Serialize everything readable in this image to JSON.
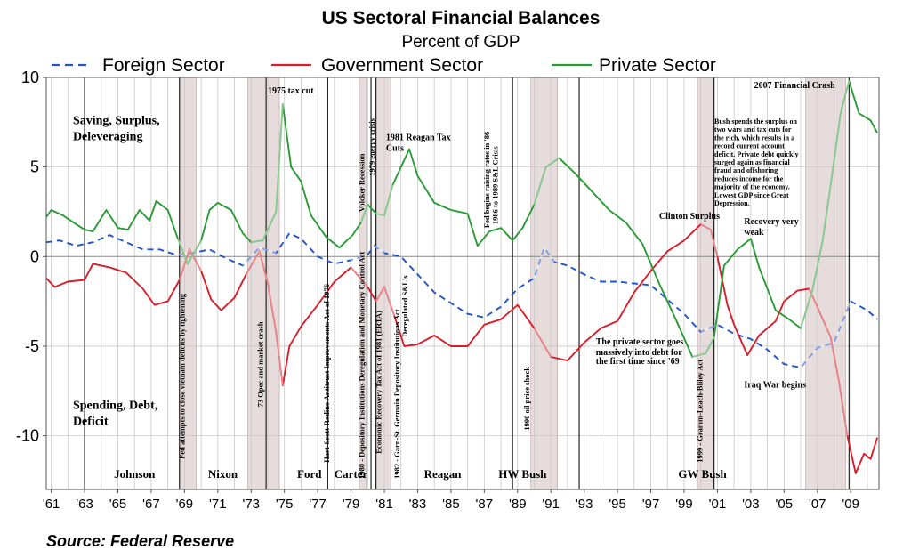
{
  "chart_data": {
    "type": "line",
    "title": "US Sectoral Financial Balances",
    "subtitle": "Percent of GDP",
    "ylim": [
      -13,
      10
    ],
    "xlim": [
      1960.7,
      2010.7
    ],
    "yticks": [
      10,
      5,
      0,
      -5,
      -10
    ],
    "ytick_labels": [
      "10",
      "5",
      "0",
      "-5",
      "-10"
    ],
    "xticks": [
      1961,
      1963,
      1965,
      1967,
      1969,
      1971,
      1973,
      1975,
      1977,
      1979,
      1981,
      1983,
      1985,
      1987,
      1989,
      1991,
      1993,
      1995,
      1997,
      1999,
      2001,
      2003,
      2005,
      2007,
      2009
    ],
    "xtick_labels": [
      "'61",
      "'63",
      "'65",
      "'67",
      "'69",
      "'71",
      "'73",
      "'75",
      "'77",
      "'79",
      "'81",
      "'83",
      "'85",
      "'87",
      "'89",
      "'91",
      "'93",
      "'95",
      "'97",
      "'99",
      "'01",
      "'03",
      "'05",
      "'07",
      "'09"
    ],
    "grid": true,
    "legend_position": "top",
    "series": [
      {
        "name": "Foreign Sector",
        "color": "#2255c8",
        "style": "dashed",
        "points": [
          [
            1960.7,
            0.8
          ],
          [
            1961.5,
            0.9
          ],
          [
            1962.5,
            0.6
          ],
          [
            1963.5,
            0.8
          ],
          [
            1964.5,
            1.2
          ],
          [
            1965.5,
            0.8
          ],
          [
            1966.5,
            0.4
          ],
          [
            1967.5,
            0.4
          ],
          [
            1968.5,
            0.1
          ],
          [
            1969.5,
            0.2
          ],
          [
            1970.5,
            0.4
          ],
          [
            1971.5,
            -0.1
          ],
          [
            1972.5,
            -0.5
          ],
          [
            1973.5,
            0.5
          ],
          [
            1974.5,
            0.2
          ],
          [
            1975.3,
            1.3
          ],
          [
            1976,
            1.0
          ],
          [
            1977,
            0.0
          ],
          [
            1978,
            -0.4
          ],
          [
            1979,
            -0.2
          ],
          [
            1980,
            0.1
          ],
          [
            1980.4,
            0.6
          ],
          [
            1981,
            0.2
          ],
          [
            1982,
            0.0
          ],
          [
            1983,
            -1.0
          ],
          [
            1984,
            -2.0
          ],
          [
            1985,
            -2.6
          ],
          [
            1986,
            -3.2
          ],
          [
            1987,
            -3.4
          ],
          [
            1988,
            -2.8
          ],
          [
            1989,
            -1.8
          ],
          [
            1990,
            -1.2
          ],
          [
            1990.6,
            0.5
          ],
          [
            1991.2,
            -0.3
          ],
          [
            1992,
            -0.5
          ],
          [
            1993,
            -1.0
          ],
          [
            1994,
            -1.4
          ],
          [
            1995,
            -1.4
          ],
          [
            1996,
            -1.5
          ],
          [
            1997,
            -1.6
          ],
          [
            1998,
            -2.4
          ],
          [
            1999,
            -3.2
          ],
          [
            2000,
            -4.2
          ],
          [
            2001,
            -3.8
          ],
          [
            2002,
            -4.3
          ],
          [
            2003,
            -4.6
          ],
          [
            2004,
            -5.2
          ],
          [
            2005,
            -6.0
          ],
          [
            2006,
            -6.2
          ],
          [
            2007,
            -5.1
          ],
          [
            2008,
            -4.8
          ],
          [
            2009,
            -2.5
          ],
          [
            2010,
            -3.0
          ],
          [
            2010.6,
            -3.5
          ]
        ]
      },
      {
        "name": "Government Sector",
        "color": "#d81e2a",
        "style": "solid",
        "points": [
          [
            1960.7,
            -1.2
          ],
          [
            1961.2,
            -1.7
          ],
          [
            1962,
            -1.4
          ],
          [
            1963,
            -1.3
          ],
          [
            1963.5,
            -0.4
          ],
          [
            1964.5,
            -0.6
          ],
          [
            1965.5,
            -0.9
          ],
          [
            1966.5,
            -1.8
          ],
          [
            1967.2,
            -2.7
          ],
          [
            1968,
            -2.5
          ],
          [
            1968.7,
            -1.3
          ],
          [
            1969.3,
            0.4
          ],
          [
            1970,
            -0.8
          ],
          [
            1970.6,
            -2.4
          ],
          [
            1971.2,
            -3.0
          ],
          [
            1972,
            -2.3
          ],
          [
            1972.7,
            -1.0
          ],
          [
            1973.5,
            0.3
          ],
          [
            1974,
            -1.5
          ],
          [
            1974.5,
            -4.2
          ],
          [
            1974.9,
            -7.2
          ],
          [
            1975.3,
            -5.0
          ],
          [
            1976,
            -3.9
          ],
          [
            1977,
            -2.7
          ],
          [
            1978,
            -1.4
          ],
          [
            1979,
            -0.6
          ],
          [
            1980,
            -1.7
          ],
          [
            1980.5,
            -2.5
          ],
          [
            1981,
            -1.7
          ],
          [
            1981.6,
            -3.3
          ],
          [
            1982.2,
            -5.0
          ],
          [
            1983,
            -4.9
          ],
          [
            1984,
            -4.4
          ],
          [
            1985,
            -5.0
          ],
          [
            1986,
            -5.0
          ],
          [
            1987,
            -3.8
          ],
          [
            1988,
            -3.5
          ],
          [
            1989,
            -2.7
          ],
          [
            1990,
            -4.0
          ],
          [
            1991,
            -5.6
          ],
          [
            1992,
            -5.8
          ],
          [
            1993,
            -4.8
          ],
          [
            1994,
            -4.0
          ],
          [
            1995,
            -3.6
          ],
          [
            1996,
            -2.0
          ],
          [
            1997,
            -0.8
          ],
          [
            1998,
            0.3
          ],
          [
            1999,
            0.9
          ],
          [
            2000,
            1.8
          ],
          [
            2000.6,
            1.5
          ],
          [
            2001,
            0.0
          ],
          [
            2001.6,
            -2.7
          ],
          [
            2002,
            -3.8
          ],
          [
            2002.8,
            -5.5
          ],
          [
            2003.5,
            -4.4
          ],
          [
            2004.5,
            -3.6
          ],
          [
            2005,
            -2.5
          ],
          [
            2005.8,
            -1.9
          ],
          [
            2006.5,
            -1.8
          ],
          [
            2007,
            -2.8
          ],
          [
            2007.8,
            -4.5
          ],
          [
            2008.3,
            -7.0
          ],
          [
            2008.8,
            -10.0
          ],
          [
            2009.3,
            -12.1
          ],
          [
            2009.8,
            -11.0
          ],
          [
            2010.2,
            -11.3
          ],
          [
            2010.6,
            -10.1
          ]
        ]
      },
      {
        "name": "Private Sector",
        "color": "#2a9b36",
        "style": "solid",
        "points": [
          [
            1960.7,
            2.2
          ],
          [
            1961,
            2.6
          ],
          [
            1961.7,
            2.3
          ],
          [
            1962.5,
            1.8
          ],
          [
            1963,
            1.5
          ],
          [
            1963.5,
            1.4
          ],
          [
            1964.3,
            2.6
          ],
          [
            1965,
            1.6
          ],
          [
            1965.6,
            1.5
          ],
          [
            1966.3,
            2.6
          ],
          [
            1966.9,
            2.0
          ],
          [
            1967.3,
            3.1
          ],
          [
            1968,
            2.6
          ],
          [
            1968.6,
            1.0
          ],
          [
            1969.2,
            -0.4
          ],
          [
            1970,
            0.9
          ],
          [
            1970.5,
            2.6
          ],
          [
            1971,
            3.0
          ],
          [
            1971.8,
            2.6
          ],
          [
            1972.5,
            1.3
          ],
          [
            1973,
            0.8
          ],
          [
            1973.7,
            0.9
          ],
          [
            1974.5,
            2.5
          ],
          [
            1974.9,
            8.5
          ],
          [
            1975.4,
            5.0
          ],
          [
            1976,
            4.2
          ],
          [
            1976.6,
            2.3
          ],
          [
            1977.5,
            1.1
          ],
          [
            1978.3,
            0.5
          ],
          [
            1979.1,
            1.2
          ],
          [
            1979.6,
            1.9
          ],
          [
            1980,
            2.9
          ],
          [
            1980.5,
            2.4
          ],
          [
            1981,
            2.3
          ],
          [
            1981.5,
            4.0
          ],
          [
            1982.5,
            6.0
          ],
          [
            1983,
            4.5
          ],
          [
            1984,
            3.0
          ],
          [
            1985,
            2.6
          ],
          [
            1986,
            2.4
          ],
          [
            1986.6,
            0.6
          ],
          [
            1987.3,
            1.4
          ],
          [
            1988,
            1.6
          ],
          [
            1988.7,
            0.9
          ],
          [
            1989.3,
            1.6
          ],
          [
            1990,
            2.9
          ],
          [
            1990.7,
            5.0
          ],
          [
            1991.5,
            5.5
          ],
          [
            1992.5,
            4.6
          ],
          [
            1993.5,
            3.6
          ],
          [
            1994.5,
            2.6
          ],
          [
            1995.5,
            1.9
          ],
          [
            1996.5,
            0.7
          ],
          [
            1997.5,
            -1.5
          ],
          [
            1998.5,
            -3.5
          ],
          [
            1999.5,
            -5.6
          ],
          [
            2000.3,
            -5.4
          ],
          [
            2000.8,
            -4.5
          ],
          [
            2001.4,
            -0.5
          ],
          [
            2002.2,
            0.4
          ],
          [
            2003,
            1.0
          ],
          [
            2003.5,
            -0.6
          ],
          [
            2004.5,
            -3.0
          ],
          [
            2005.3,
            -3.5
          ],
          [
            2006,
            -4.0
          ],
          [
            2006.7,
            -1.9
          ],
          [
            2007.3,
            0.8
          ],
          [
            2007.8,
            4.0
          ],
          [
            2008.4,
            8.0
          ],
          [
            2008.9,
            9.8
          ],
          [
            2009.5,
            8.0
          ],
          [
            2010.2,
            7.6
          ],
          [
            2010.6,
            6.9
          ]
        ]
      }
    ],
    "shaded_periods": [
      [
        1968.7,
        1969.7
      ],
      [
        1972.8,
        1974.7
      ],
      [
        1979.5,
        1979.9
      ],
      [
        1980.5,
        1981.4
      ],
      [
        1989.8,
        1991.4
      ],
      [
        1999.8,
        2000.8
      ],
      [
        2006.3,
        2008.7
      ]
    ],
    "vertical_markers": [
      1963.0,
      1968.7,
      1973.9,
      1977.6,
      1980.2,
      1980.5,
      1988.7,
      1992.7,
      2000.8,
      2008.9
    ],
    "annotations": [
      {
        "text": "Saving, Surplus,",
        "x": 1962.3,
        "y": 7.4
      },
      {
        "text": "Deleveraging",
        "x": 1962.3,
        "y": 6.5
      },
      {
        "text": "Spending, Debt,",
        "x": 1962.3,
        "y": -8.5
      },
      {
        "text": "Deficit",
        "x": 1962.3,
        "y": -9.4
      },
      {
        "text": "1975 tax cut",
        "x": 1974.0,
        "y": 9.1
      },
      {
        "text": "1981 Reagan Tax",
        "x": 1981.1,
        "y": 6.5
      },
      {
        "text": "Cuts",
        "x": 1981.1,
        "y": 5.9
      },
      {
        "text": "2007 Financial Crash",
        "x": 2003.2,
        "y": 9.4
      },
      {
        "text": "Clinton Surplus",
        "x": 1997.5,
        "y": 2.1
      },
      {
        "text": "Recovery very",
        "x": 2002.6,
        "y": 1.8
      },
      {
        "text": "weak",
        "x": 2002.6,
        "y": 1.2
      },
      {
        "text": "Iraq War begins",
        "x": 2002.6,
        "y": -7.3
      },
      {
        "text": "The private sector goes",
        "x": 1993.7,
        "y": -4.9
      },
      {
        "text": "massively into debt for",
        "x": 1993.7,
        "y": -5.5
      },
      {
        "text": "the first time since '69",
        "x": 1993.7,
        "y": -6.0
      }
    ],
    "bush_note": [
      "Bush spends the surplus on",
      "two wars and tax cuts for",
      "the rich, which results in a",
      "record current account",
      "deficit. Private debt quickly",
      "surged again as financial",
      "fraud and offshoring",
      "reduces income for the",
      "majority of the economy.",
      "Lowest GDP since Great",
      "Depression."
    ],
    "vertical_annotations": [
      {
        "text": "Fed attempts to close vietnam deficits by tightening",
        "x": 1969.0,
        "y": -11.3
      },
      {
        "text": "73 Opec and market crash",
        "x": 1973.7,
        "y": -8.4
      },
      {
        "text": "Hart-Scott-Rodino Antitrust Improvements Act of 1976",
        "x": 1977.7,
        "y": -11.5
      },
      {
        "text": "1980 - Depository Institutions Deregulation and Monetary Control Act",
        "x": 1979.8,
        "y": -12.4
      },
      {
        "text": "Volcker Recession",
        "x": 1979.8,
        "y": 2.5
      },
      {
        "text": "1979 energy crisis",
        "x": 1980.4,
        "y": 4.5
      },
      {
        "text": "Economic Recovery Tax Act of 1981 (ERTA)",
        "x": 1980.8,
        "y": -11.0
      },
      {
        "text": "1982 - Garn-St. Germain Depository Institutions Act",
        "x": 1981.9,
        "y": -12.4
      },
      {
        "text": "Deregulated S&L's",
        "x": 1982.4,
        "y": -4.5
      },
      {
        "text": "Fed begins raising rates in '86",
        "x": 1987.3,
        "y": 1.6
      },
      {
        "text": "1986 to 1989 S&L Crisis",
        "x": 1987.8,
        "y": 1.8
      },
      {
        "text": "1990 oil price shock",
        "x": 1989.7,
        "y": -9.7
      },
      {
        "text": "1999 - Gramm-Leach-Bliley Act",
        "x": 2000.1,
        "y": -11.5
      }
    ],
    "presidents": [
      {
        "text": "Johnson",
        "x": 1966.0
      },
      {
        "text": "Nixon",
        "x": 1971.3
      },
      {
        "text": "Ford",
        "x": 1976.5
      },
      {
        "text": "Carter",
        "x": 1979.0
      },
      {
        "text": "Reagan",
        "x": 1984.5
      },
      {
        "text": "HW Bush",
        "x": 1989.3
      },
      {
        "text": "GW Bush",
        "x": 2000.1
      }
    ]
  },
  "source": "Source:  Federal Reserve"
}
